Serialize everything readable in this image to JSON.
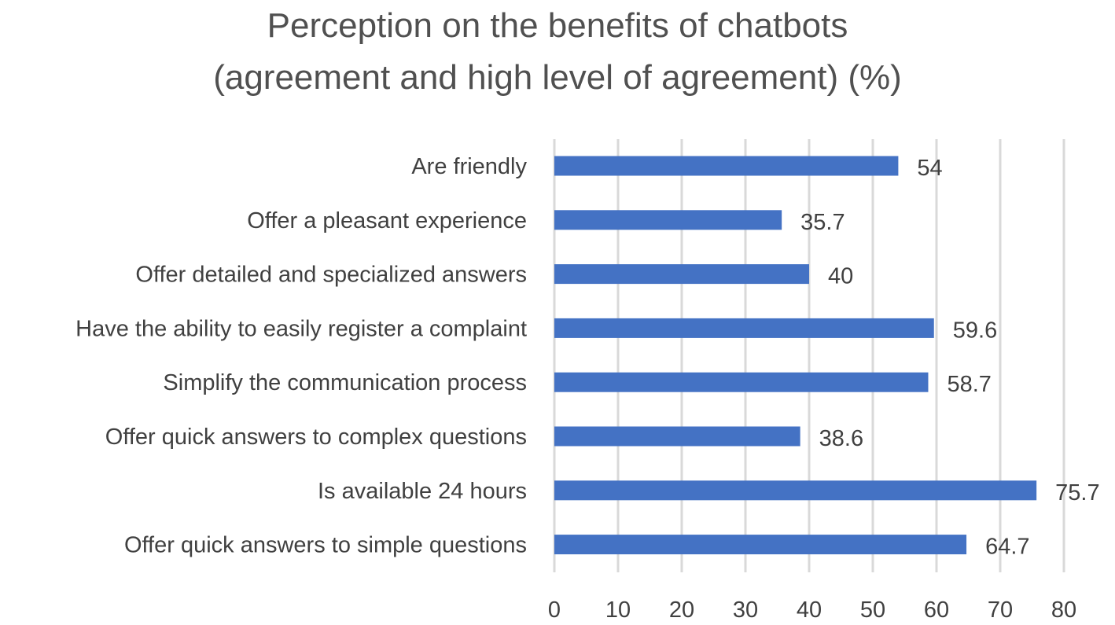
{
  "chart_data": {
    "type": "bar",
    "orientation": "horizontal",
    "title": "Perception on the benefits of chatbots",
    "subtitle": "(agreement and high level of agreement) (%)",
    "categories": [
      "Are friendly",
      "Offer a pleasant experience",
      "Offer detailed and specialized answers",
      "Have the ability to easily register a complaint",
      "Simplify the communication process",
      "Offer quick answers to complex questions",
      "Is available 24 hours",
      "Offer quick answers to simple questions"
    ],
    "values": [
      54,
      35.7,
      40,
      59.6,
      58.7,
      38.6,
      75.7,
      64.7
    ],
    "value_labels": [
      "54",
      "35.7",
      "40",
      "59.6",
      "58.7",
      "38.6",
      "75.7",
      "64.7"
    ],
    "xticks": [
      "0",
      "10",
      "20",
      "30",
      "40",
      "50",
      "60",
      "70",
      "80"
    ],
    "xlim": [
      0,
      80
    ],
    "xlabel": "",
    "ylabel": "",
    "grid": "vertical",
    "legend": "none",
    "colors": {
      "bar": "#4472C4",
      "grid": "#D9D9D9",
      "text": "#404040",
      "title": "#505050"
    }
  }
}
